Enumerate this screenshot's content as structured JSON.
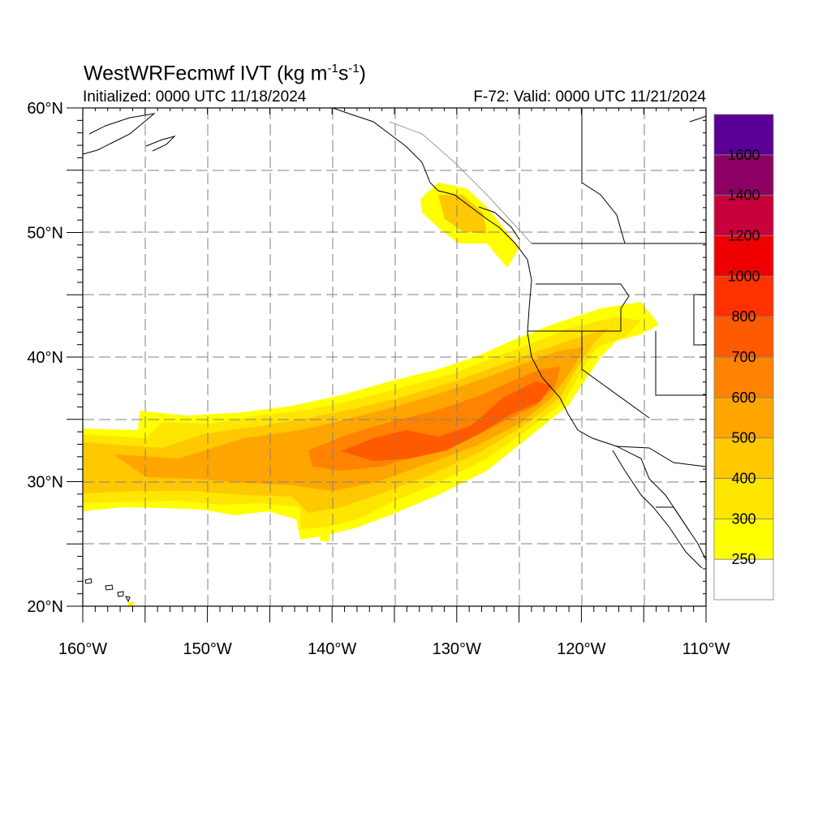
{
  "title": {
    "main": "WestWRFecmwf IVT (kg m",
    "exp1": "-1",
    "mid": "s",
    "exp2": "-1",
    "close": ")"
  },
  "initialized": "Initialized: 0000 UTC 11/18/2024",
  "valid": "F-72: Valid: 0000 UTC 11/21/2024",
  "lat_labels": [
    {
      "text": "60°N",
      "lat": 60
    },
    {
      "text": "50°N",
      "lat": 50
    },
    {
      "text": "40°N",
      "lat": 40
    },
    {
      "text": "30°N",
      "lat": 30
    },
    {
      "text": "20°N",
      "lat": 20
    }
  ],
  "lon_labels": [
    {
      "text": "160°W",
      "lon": -160
    },
    {
      "text": "150°W",
      "lon": -150
    },
    {
      "text": "140°W",
      "lon": -140
    },
    {
      "text": "130°W",
      "lon": -130
    },
    {
      "text": "120°W",
      "lon": -120
    },
    {
      "text": "110°W",
      "lon": -110
    }
  ],
  "colorbar": {
    "levels": [
      {
        "value": null,
        "color": "#ffffff"
      },
      {
        "value": "250",
        "color": "#ffff00"
      },
      {
        "value": "300",
        "color": "#ffe600"
      },
      {
        "value": "400",
        "color": "#ffc800"
      },
      {
        "value": "500",
        "color": "#ffa500"
      },
      {
        "value": "600",
        "color": "#ff8200"
      },
      {
        "value": "700",
        "color": "#ff5a00"
      },
      {
        "value": "800",
        "color": "#ff3200"
      },
      {
        "value": "1000",
        "color": "#ee0000"
      },
      {
        "value": "1200",
        "color": "#c8003c"
      },
      {
        "value": "1400",
        "color": "#8c0064"
      },
      {
        "value": "1600",
        "color": "#5a0096"
      }
    ]
  },
  "map_extent": {
    "lon_min": -160,
    "lon_max": -110,
    "lat_min": 20,
    "lat_max": 60
  }
}
